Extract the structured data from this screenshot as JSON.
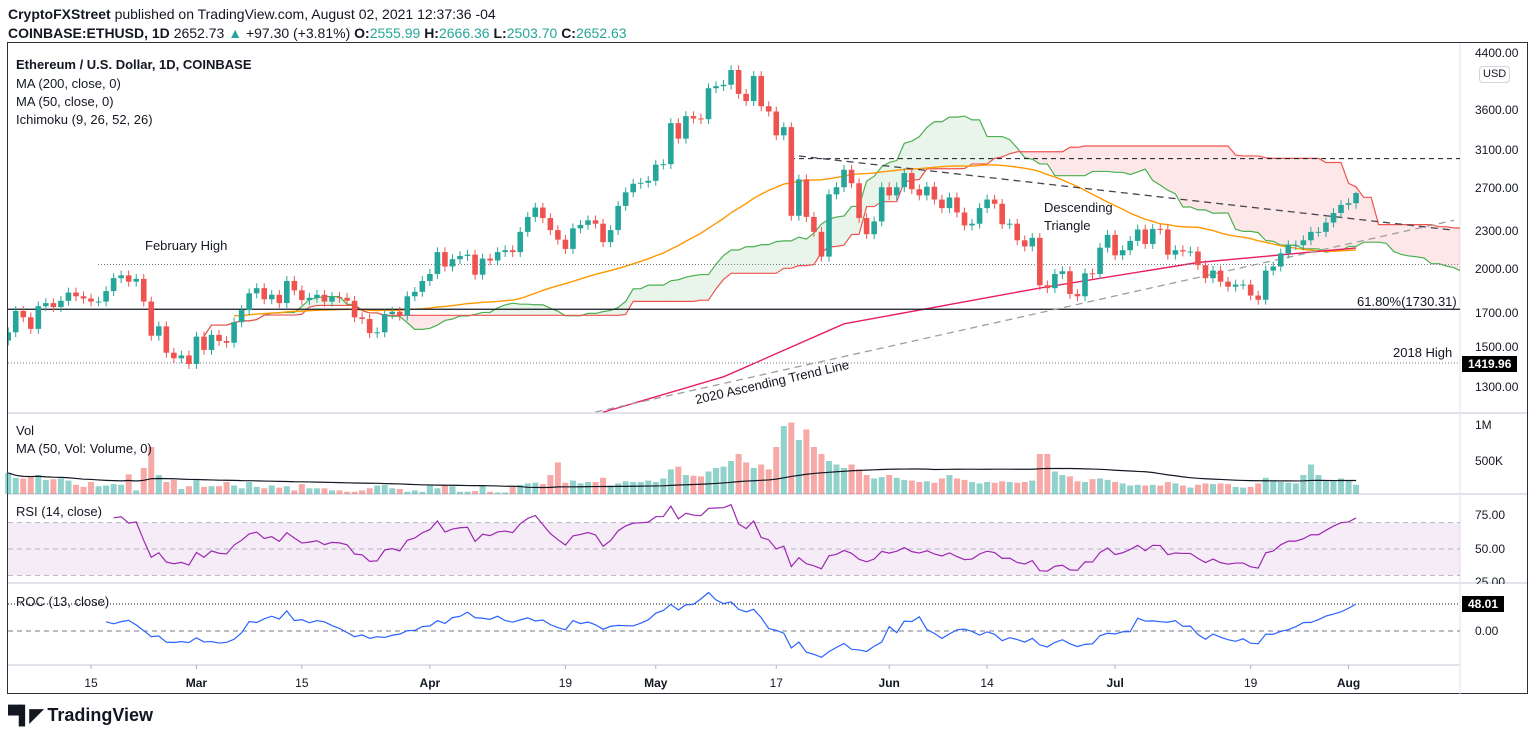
{
  "header": {
    "publisher": "CryptoFXStreet",
    "published_text": "published on TradingView.com, August 02, 2021 12:37:36 -04",
    "symbol": "COINBASE:ETHUSD, 1D",
    "last_price": "2652.73",
    "change": "+97.30 (+3.81%)",
    "open_label": "O:",
    "open": "2555.99",
    "high_label": "H:",
    "high": "2666.36",
    "low_label": "L:",
    "low": "2503.70",
    "close_label": "C:",
    "close": "2652.63"
  },
  "legend": {
    "title": "Ethereum / U.S. Dollar, 1D, COINBASE",
    "ma200": "MA (200, close, 0)",
    "ma50": "MA (50, close, 0)",
    "ichimoku": "Ichimoku (9, 26, 52, 26)",
    "vol": "Vol",
    "vol_ma": "MA (50, Vol: Volume, 0)",
    "rsi": "RSI (14, close)",
    "roc": "ROC (13, close)"
  },
  "annotations": {
    "february_high": "February High",
    "fib": "61.80%(1730.31)",
    "high_2018": "2018 High",
    "descending_triangle_1": "Descending",
    "descending_triangle_2": "Triangle",
    "trend_line": "2020 Ascending Trend Line"
  },
  "price_axis": {
    "currency": "USD",
    "ticks": [
      "4400.00",
      "3600.00",
      "3100.00",
      "2700.00",
      "2300.00",
      "2000.00",
      "1700.00",
      "1500.00",
      "1300.00"
    ],
    "tag_2018_high": "1419.96"
  },
  "volume_axis": {
    "ticks": [
      "1M",
      "500K"
    ]
  },
  "rsi_axis": {
    "ticks": [
      "75.00",
      "50.00",
      "25.00"
    ]
  },
  "roc_axis": {
    "ticks": [
      "0.00"
    ],
    "last_tag": "48.01"
  },
  "x_axis": {
    "labels": [
      {
        "text": "15",
        "date": "2021-02-15"
      },
      {
        "text": "Mar",
        "date": "2021-03-01"
      },
      {
        "text": "15",
        "date": "2021-03-15"
      },
      {
        "text": "Apr",
        "date": "2021-04-01"
      },
      {
        "text": "19",
        "date": "2021-04-19"
      },
      {
        "text": "May",
        "date": "2021-05-01"
      },
      {
        "text": "17",
        "date": "2021-05-17"
      },
      {
        "text": "Jun",
        "date": "2021-06-01"
      },
      {
        "text": "14",
        "date": "2021-06-14"
      },
      {
        "text": "Jul",
        "date": "2021-07-01"
      },
      {
        "text": "19",
        "date": "2021-07-19"
      },
      {
        "text": "Aug",
        "date": "2021-08-01"
      }
    ]
  },
  "colors": {
    "up": "#26a69a",
    "down": "#ef5350",
    "ma50": "#ff9800",
    "ma200": "#e91e63",
    "span_a": "#4caf50",
    "span_b": "#ef5350",
    "rsi": "#9c27b0",
    "roc": "#2962ff"
  },
  "logo": "TradingView",
  "chart_data": {
    "type": "candlestick",
    "y_scale": "log",
    "ylim": [
      1150,
      4400
    ],
    "x_range": [
      "2021-02-04",
      "2021-08-02"
    ],
    "interval": "1D",
    "close": [
      1590,
      1720,
      1680,
      1610,
      1750,
      1770,
      1745,
      1785,
      1840,
      1815,
      1800,
      1780,
      1780,
      1850,
      1940,
      1960,
      1915,
      1935,
      1780,
      1570,
      1625,
      1475,
      1445,
      1460,
      1415,
      1565,
      1490,
      1575,
      1540,
      1530,
      1650,
      1725,
      1835,
      1870,
      1795,
      1825,
      1770,
      1920,
      1855,
      1790,
      1805,
      1825,
      1780,
      1810,
      1805,
      1785,
      1680,
      1670,
      1585,
      1590,
      1700,
      1715,
      1690,
      1815,
      1845,
      1920,
      1970,
      2135,
      2025,
      2080,
      2105,
      2115,
      1965,
      2085,
      2070,
      2135,
      2150,
      2135,
      2300,
      2430,
      2515,
      2420,
      2315,
      2235,
      2160,
      2330,
      2360,
      2400,
      2370,
      2215,
      2315,
      2530,
      2660,
      2745,
      2755,
      2775,
      2945,
      2950,
      3430,
      3240,
      3520,
      3490,
      3480,
      3900,
      3930,
      3950,
      4170,
      3820,
      3720,
      4080,
      3650,
      3580,
      3280,
      3380,
      2440,
      2790,
      2430,
      2300,
      2100,
      2640,
      2710,
      2890,
      2750,
      2420,
      2280,
      2390,
      2710,
      2630,
      2710,
      2855,
      2690,
      2630,
      2715,
      2590,
      2510,
      2610,
      2470,
      2355,
      2370,
      2510,
      2590,
      2550,
      2365,
      2370,
      2230,
      2180,
      2250,
      1890,
      1870,
      1970,
      1990,
      1830,
      1815,
      1975,
      1970,
      2170,
      2275,
      2110,
      2150,
      2225,
      2320,
      2200,
      2325,
      2320,
      2115,
      2150,
      2140,
      2140,
      2035,
      1940,
      1995,
      1915,
      1880,
      1895,
      1895,
      1820,
      1792,
      1995,
      2025,
      2125,
      2190,
      2190,
      2230,
      2300,
      2300,
      2380,
      2465,
      2540,
      2555.99,
      2652.63
    ],
    "last_candle": {
      "open": 2555.99,
      "high": 2666.36,
      "low": 2503.7,
      "close": 2652.63
    },
    "volume_k": [
      330,
      260,
      250,
      270,
      300,
      230,
      240,
      250,
      220,
      160,
      130,
      200,
      140,
      150,
      170,
      160,
      310,
      80,
      400,
      700,
      300,
      200,
      230,
      100,
      140,
      230,
      130,
      140,
      140,
      200,
      150,
      110,
      200,
      130,
      110,
      150,
      120,
      140,
      80,
      170,
      110,
      110,
      110,
      80,
      80,
      60,
      60,
      80,
      110,
      150,
      160,
      110,
      100,
      60,
      80,
      60,
      150,
      110,
      150,
      140,
      60,
      60,
      70,
      150,
      60,
      50,
      50,
      130,
      160,
      180,
      190,
      170,
      300,
      480,
      190,
      220,
      180,
      200,
      200,
      260,
      150,
      180,
      210,
      200,
      200,
      220,
      200,
      250,
      380,
      420,
      300,
      290,
      280,
      350,
      400,
      420,
      500,
      600,
      480,
      400,
      450,
      380,
      700,
      1000,
      1050,
      800,
      950,
      700,
      600,
      500,
      450,
      400,
      450,
      380,
      300,
      250,
      270,
      300,
      260,
      230,
      220,
      200,
      210,
      190,
      250,
      300,
      250,
      230,
      200,
      180,
      200,
      190,
      210,
      200,
      190,
      200,
      220,
      600,
      600,
      350,
      300,
      280,
      210,
      200,
      240,
      250,
      230,
      200,
      180,
      150,
      160,
      150,
      160,
      150,
      200,
      180,
      150,
      120,
      160,
      180,
      170,
      180,
      170,
      130,
      120,
      130,
      180,
      260,
      230,
      200,
      190,
      180,
      300,
      450,
      300,
      210,
      220,
      250,
      220,
      160
    ],
    "ma200": [
      {
        "date": "2021-04-24",
        "value": 1185
      },
      {
        "date": "2021-05-10",
        "value": 1350
      },
      {
        "date": "2021-05-26",
        "value": 1640
      },
      {
        "date": "2021-06-21",
        "value": 1871
      },
      {
        "date": "2021-07-12",
        "value": 2055
      },
      {
        "date": "2021-08-02",
        "value": 2168
      }
    ],
    "levels": {
      "february_high": 2040,
      "fib_618": 1730.31,
      "high_2018": 1419.96,
      "triangle_top": 3010
    },
    "trend_lines": {
      "descending": [
        {
          "date": "2021-05-20",
          "value": 3040
        },
        {
          "date": "2021-08-15",
          "value": 2314
        }
      ],
      "ascending_2020": [
        {
          "date": "2021-04-23",
          "value": 1186
        },
        {
          "date": "2021-08-15",
          "value": 2400
        }
      ]
    },
    "rsi_bands": [
      70,
      30
    ],
    "roc_last": 48.01
  }
}
